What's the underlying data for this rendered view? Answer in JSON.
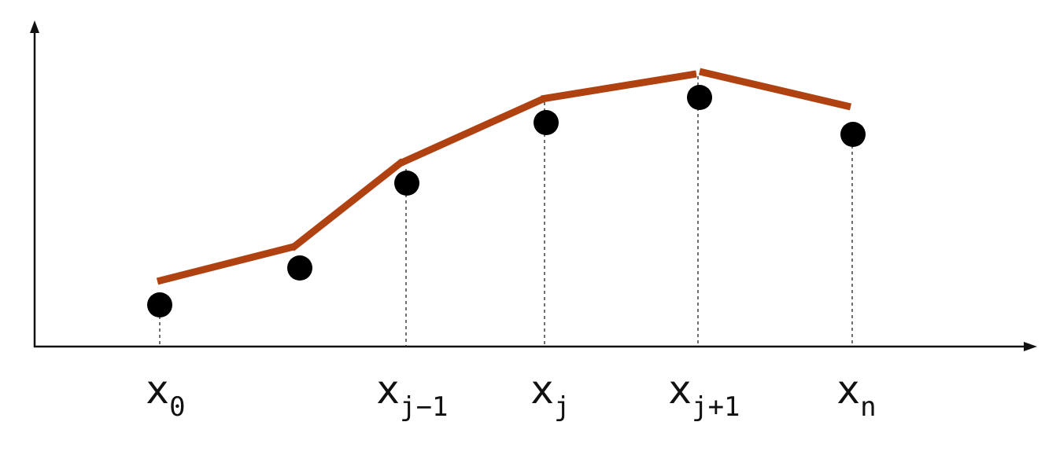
{
  "diagram": {
    "colors": {
      "axis": "#111111",
      "line": "#b04212",
      "point": "#000000",
      "guide": "#333333"
    },
    "labels": [
      {
        "main": "x",
        "sub": "0"
      },
      {
        "main": "x",
        "sub": "j−1"
      },
      {
        "main": "x",
        "sub": "j"
      },
      {
        "main": "x",
        "sub": "j+1"
      },
      {
        "main": "x",
        "sub": "n"
      }
    ]
  }
}
